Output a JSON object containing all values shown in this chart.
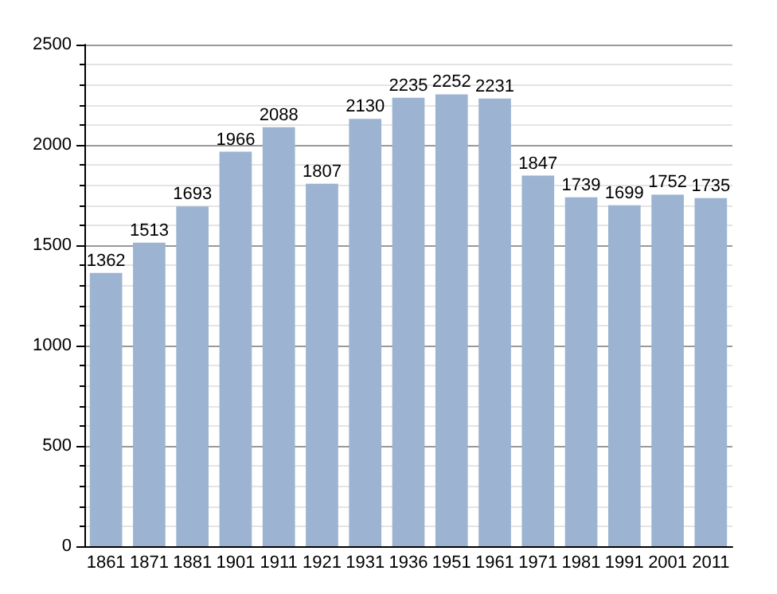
{
  "chart_data": {
    "type": "bar",
    "categories": [
      "1861",
      "1871",
      "1881",
      "1901",
      "1911",
      "1921",
      "1931",
      "1936",
      "1951",
      "1961",
      "1971",
      "1981",
      "1991",
      "2001",
      "2011"
    ],
    "values": [
      1362,
      1513,
      1693,
      1966,
      2088,
      1807,
      2130,
      2235,
      2252,
      2231,
      1847,
      1739,
      1699,
      1752,
      1735
    ],
    "color": "#9cb4d2",
    "ylim": [
      0,
      2500
    ],
    "yticks": [
      0,
      500,
      1000,
      1500,
      2000,
      2500
    ],
    "grid": "y",
    "data_labels": true
  }
}
